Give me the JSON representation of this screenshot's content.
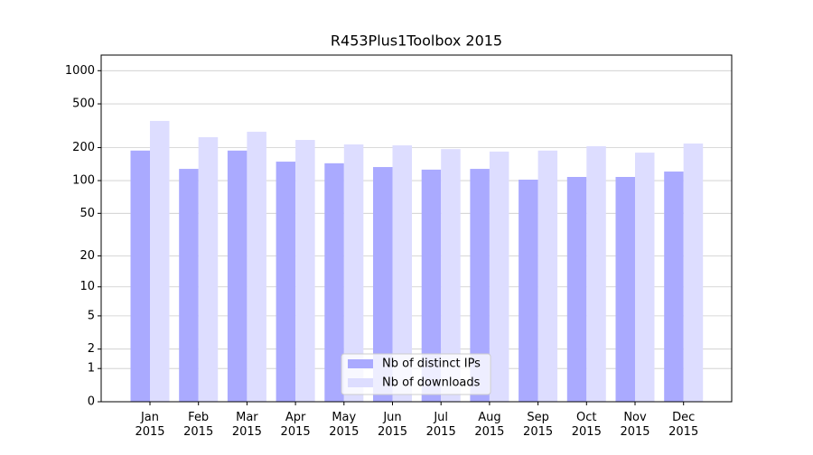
{
  "chart_data": {
    "type": "bar",
    "title": "R453Plus1Toolbox 2015",
    "categories": [
      "Jan\n2015",
      "Feb\n2015",
      "Mar\n2015",
      "Apr\n2015",
      "May\n2015",
      "Jun\n2015",
      "Jul\n2015",
      "Aug\n2015",
      "Sep\n2015",
      "Oct\n2015",
      "Nov\n2015",
      "Dec\n2015"
    ],
    "series": [
      {
        "name": "Nb of distinct IPs",
        "color": "#aaaaff",
        "values": [
          188,
          128,
          188,
          149,
          144,
          133,
          126,
          128,
          102,
          108,
          108,
          121
        ]
      },
      {
        "name": "Nb of downloads",
        "color": "#ddddff",
        "values": [
          350,
          249,
          279,
          235,
          214,
          210,
          194,
          184,
          188,
          206,
          180,
          218
        ]
      }
    ],
    "yscale": "symlog",
    "ylim": [
      0,
      1386
    ],
    "yticks": [
      0,
      1,
      2,
      5,
      10,
      20,
      50,
      100,
      200,
      500,
      1000
    ],
    "grid": true,
    "legend": "lower center"
  }
}
